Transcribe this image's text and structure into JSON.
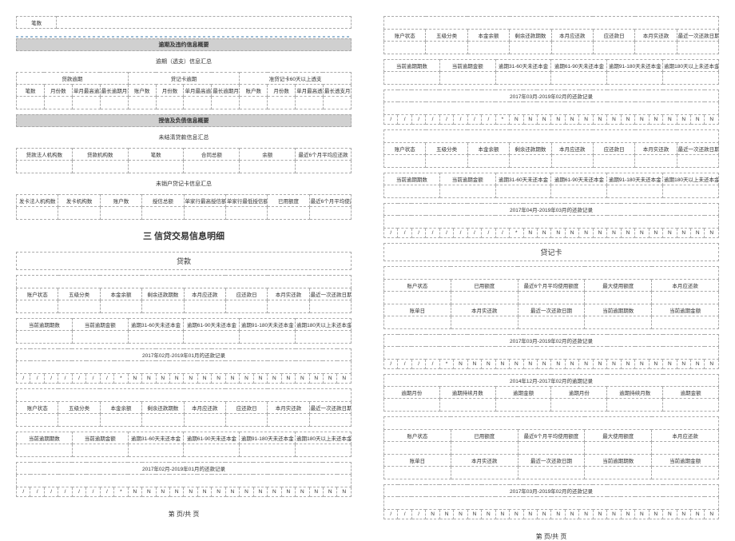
{
  "left": {
    "row_bi_shu": "笔数",
    "section1_bar": "逾期及违约信息概要",
    "section1_sub": "逾期（透支）信息汇总",
    "section1_headers_g": [
      "贷款逾期",
      "贷记卡逾期",
      "准贷记卡60天以上透支"
    ],
    "section1_headers": [
      "笔数",
      "月份数",
      "单月最高逾期总额",
      "最长逾期月数",
      "账户数",
      "月份数",
      "单月最高逾期总额",
      "最长逾期月数",
      "账户数",
      "月份数",
      "单月最高透支余额",
      "最长透支月数"
    ],
    "section2_bar": "授信及负债信息概要",
    "section2_sub": "未结清贷款信息汇总",
    "section2_headers": [
      "贷款法人机构数",
      "贷款机构数",
      "笔数",
      "合同总额",
      "余额",
      "最近6个月平均应还款"
    ],
    "section3_sub": "未销户贷记卡信息汇总",
    "section3_headers": [
      "发卡法人机构数",
      "发卡机构数",
      "账户数",
      "授信总额",
      "单家行最高授信额",
      "单家行最低授信额",
      "已用额度",
      "最近6个月平均使用额度"
    ],
    "main_title": "三 信贷交易信息明细",
    "cat_loan": "贷款",
    "loan_headers1": [
      "账户状态",
      "五级分类",
      "本金余额",
      "剩余还款期数",
      "本月应还款",
      "应还款日",
      "本月实还款",
      "最近一次还款日期"
    ],
    "loan_headers2": [
      "当前逾期期数",
      "当前逾期金额",
      "逾期31-60天未还本金",
      "逾期61-90天未还本金",
      "逾期91-180天未还本金",
      "逾期180天以上未还本金"
    ],
    "repay_title1": "2017年02月-2019年01月的还款记录",
    "repay_title2": "2017年02月-2019年01月的还款记录",
    "repay_marks": [
      "/",
      "/",
      "/",
      "/",
      "/",
      "/",
      "/",
      "*",
      "N",
      "N",
      "N",
      "N",
      "N",
      "N",
      "N",
      "N",
      "N",
      "N",
      "N",
      "N",
      "N",
      "N",
      "N",
      "N"
    ]
  },
  "right": {
    "loan_headers1": [
      "账户状态",
      "五级分类",
      "本金余额",
      "剩余还款期数",
      "本月应还款",
      "应还款日",
      "本月实还款",
      "最近一次还款日期"
    ],
    "loan_headers2": [
      "当前逾期期数",
      "当前逾期金额",
      "逾期31-60天未还本金",
      "逾期61-90天未还本金",
      "逾期91-180天未还本金",
      "逾期180天以上未还本金"
    ],
    "repay_title1": "2017年03月-2019年02月的还款记录",
    "repay_title2": "2017年04月-2019年03月的还款记录",
    "repay_marks1": [
      "/",
      "/",
      "/",
      "/",
      "/",
      "/",
      "/",
      "/",
      "*",
      "N",
      "N",
      "N",
      "N",
      "N",
      "N",
      "N",
      "N",
      "N",
      "N",
      "N",
      "N",
      "N",
      "N",
      "N"
    ],
    "repay_marks2": [
      "/",
      "/",
      "/",
      "/",
      "/",
      "/",
      "/",
      "/",
      "/",
      "*",
      "N",
      "N",
      "N",
      "N",
      "N",
      "N",
      "N",
      "N",
      "N",
      "N",
      "N",
      "N",
      "N",
      "N"
    ],
    "cat_card": "贷记卡",
    "card_headers1": [
      "账户状态",
      "已用额度",
      "最近6个月平均使用额度",
      "最大使用额度",
      "本月应还款"
    ],
    "card_headers2": [
      "账单日",
      "本月实还款",
      "最近一次还款日期",
      "当前逾期期数",
      "当前逾期金额"
    ],
    "card_repay_title": "2017年03月-2019年02月的还款记录",
    "card_repay_marks": [
      "/",
      "/",
      "/",
      "/",
      "*",
      "N",
      "N",
      "N",
      "N",
      "N",
      "N",
      "N",
      "N",
      "N",
      "N",
      "N",
      "N",
      "N",
      "N",
      "N",
      "N",
      "N",
      "N",
      "N"
    ],
    "overdue_title": "2014年12月-2017年02月的逾期记录",
    "overdue_headers": [
      "逾期月份",
      "逾期持续月数",
      "逾期金额",
      "逾期月份",
      "逾期持续月数",
      "逾期金额"
    ],
    "card_repay_title2": "2017年03月-2019年02月的还款记录",
    "card_repay_marks2": [
      "/",
      "/",
      "/",
      "N",
      "N",
      "N",
      "N",
      "N",
      "N",
      "N",
      "N",
      "N",
      "N",
      "N",
      "N",
      "N",
      "N",
      "N",
      "N",
      "N",
      "N",
      "N",
      "N",
      "N"
    ]
  },
  "footer": "第  页/共  页"
}
